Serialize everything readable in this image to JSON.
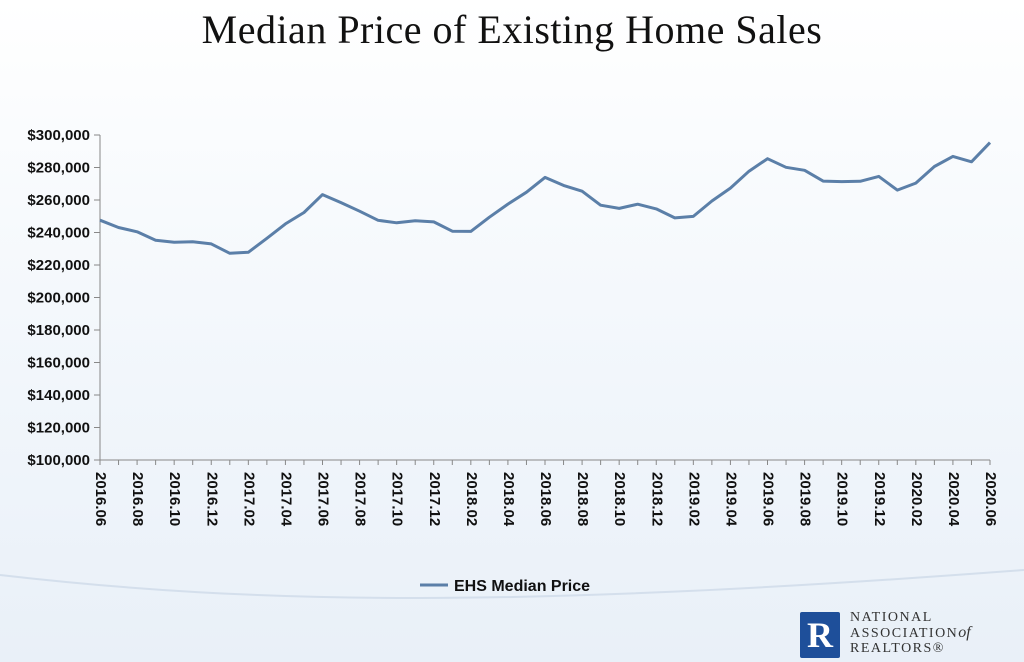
{
  "chart_data": {
    "type": "line",
    "title": "Median Price of Existing Home Sales",
    "ylim": [
      100000,
      300000
    ],
    "y_ticks": [
      "$100,000",
      "$120,000",
      "$140,000",
      "$160,000",
      "$180,000",
      "$200,000",
      "$220,000",
      "$240,000",
      "$260,000",
      "$280,000",
      "$300,000"
    ],
    "y_tick_values": [
      100000,
      120000,
      140000,
      160000,
      180000,
      200000,
      220000,
      240000,
      260000,
      280000,
      300000
    ],
    "x": [
      "2016.06",
      "2016.07",
      "2016.08",
      "2016.09",
      "2016.10",
      "2016.11",
      "2016.12",
      "2017.01",
      "2017.02",
      "2017.03",
      "2017.04",
      "2017.05",
      "2017.06",
      "2017.07",
      "2017.08",
      "2017.09",
      "2017.10",
      "2017.11",
      "2017.12",
      "2018.01",
      "2018.02",
      "2018.03",
      "2018.04",
      "2018.05",
      "2018.06",
      "2018.07",
      "2018.08",
      "2018.09",
      "2018.10",
      "2018.11",
      "2018.12",
      "2019.01",
      "2019.02",
      "2019.03",
      "2019.04",
      "2019.05",
      "2019.06",
      "2019.07",
      "2019.08",
      "2019.09",
      "2019.10",
      "2019.11",
      "2019.12",
      "2020.01",
      "2020.02",
      "2020.03",
      "2020.04",
      "2020.05",
      "2020.06"
    ],
    "x_tick_labels": [
      "2016.06",
      "2016.08",
      "2016.10",
      "2016.12",
      "2017.02",
      "2017.04",
      "2017.06",
      "2017.08",
      "2017.10",
      "2017.12",
      "2018.02",
      "2018.04",
      "2018.06",
      "2018.08",
      "2018.10",
      "2018.12",
      "2019.02",
      "2019.04",
      "2019.06",
      "2019.08",
      "2019.10",
      "2019.12",
      "2020.02",
      "2020.04",
      "2020.06"
    ],
    "series": [
      {
        "name": "EHS Median Price",
        "color": "#5b7fa8",
        "values": [
          247600,
          243100,
          240400,
          235200,
          234000,
          234300,
          233000,
          227200,
          227800,
          236400,
          245300,
          252300,
          263300,
          258400,
          253100,
          247500,
          246000,
          247200,
          246500,
          240800,
          240700,
          249400,
          257500,
          264800,
          273900,
          269000,
          265400,
          256800,
          254800,
          257400,
          254500,
          249000,
          249900,
          259400,
          267300,
          277700,
          285400,
          280100,
          278300,
          271600,
          271300,
          271500,
          274500,
          266100,
          270400,
          280600,
          286800,
          283500,
          295300
        ]
      }
    ],
    "legend_position": "bottom",
    "grid": false
  },
  "logo": {
    "mark": "R",
    "line1": "NATIONAL",
    "line2": "ASSOCIATION",
    "line2_of": "of",
    "line3": "REALTORS®",
    "mark_color": "#1e4f9a"
  }
}
